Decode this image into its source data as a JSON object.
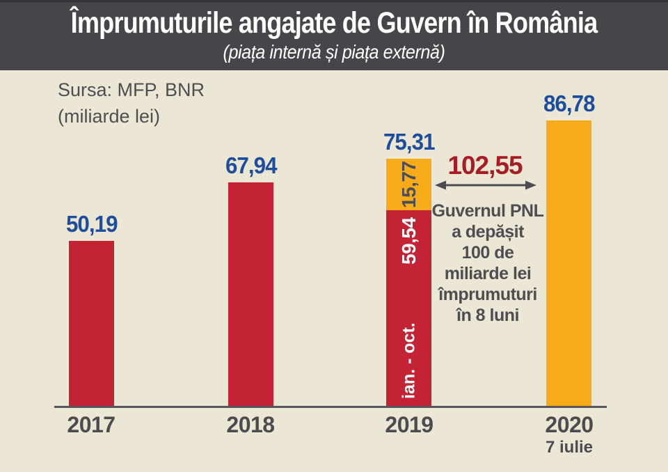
{
  "header": {
    "title": "Împrumuturile angajate de Guvern în România",
    "subtitle": "(piața internă și piața externă)"
  },
  "source": {
    "line1": "Sursa: MFP, BNR",
    "line2": "(miliarde lei)"
  },
  "annotation": {
    "value_label": "102,55",
    "lines": [
      "Guvernul PNL",
      "a depășit",
      "100 de",
      "miliarde lei",
      "împrumuturi",
      "în 8 luni"
    ]
  },
  "colors": {
    "banner": "#474549",
    "background": "#ece6d5",
    "bar_red": "#c32334",
    "bar_yellow": "#f8ab19",
    "value_blue": "#1d4e9e",
    "annotation_red": "#a81c26",
    "text_gray": "#4e4d52"
  },
  "chart_data": {
    "type": "bar",
    "stacked": true,
    "title": "Împrumuturile angajate de Guvern în România",
    "subtitle": "(piața internă și piața externă)",
    "source": "Sursa: MFP, BNR",
    "unit": "miliarde lei",
    "categories": [
      "2017",
      "2018",
      "2019",
      "2020"
    ],
    "category_note_2020": "7 iulie",
    "totals": [
      50.19,
      67.94,
      75.31,
      86.78
    ],
    "ylim": [
      0,
      90
    ],
    "grid": false,
    "legend": false,
    "bars": [
      {
        "category": "2017",
        "total_label": "50,19",
        "segments": [
          {
            "value": 50.19,
            "color": "red"
          }
        ]
      },
      {
        "category": "2018",
        "total_label": "67,94",
        "segments": [
          {
            "value": 67.94,
            "color": "red"
          }
        ]
      },
      {
        "category": "2019",
        "total_label": "75,31",
        "segments": [
          {
            "value": 59.54,
            "color": "red",
            "value_label": "59,54",
            "period_label": "ian. - oct."
          },
          {
            "value": 15.77,
            "color": "yellow",
            "value_label": "15,77"
          }
        ]
      },
      {
        "category": "2020",
        "total_label": "86,78",
        "segments": [
          {
            "value": 86.78,
            "color": "yellow"
          }
        ]
      }
    ],
    "annotation": {
      "value": 102.55,
      "label": "102,55",
      "text": "Guvernul PNL a depășit 100 de miliarde lei împrumuturi în 8 luni"
    }
  }
}
